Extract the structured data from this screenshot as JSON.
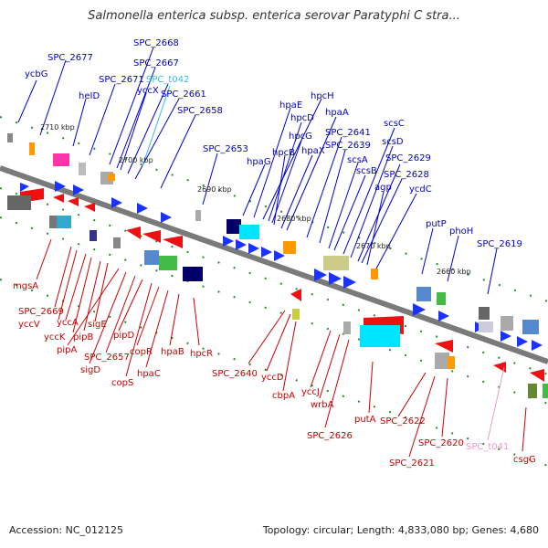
{
  "title": "Salmonella enterica subsp. enterica serovar Paratyphi C stra...",
  "footer": {
    "accession": "Accession: NC_012125",
    "topology": "Topology: circular; Length: 4,833,080 bp; Genes: 4,680"
  },
  "colors": {
    "backbone": "#777777",
    "forward_label": "#0000cc",
    "reverse_label": "#cc0000",
    "trna_forward": "#33bbee",
    "trna_reverse": "#ee99cc",
    "forward_arrow": "#1a33ff",
    "reverse_arrow": "#ee1111"
  },
  "kbp_markers": [
    "2710 kbp",
    "2700 kbp",
    "2690 kbp",
    "2680 kbp",
    "2670 kbp",
    "2660 kbp"
  ],
  "genes_top": [
    "ycbG",
    "SPC_2677",
    "heID",
    "SPC_2671",
    "SPC_2668",
    "SPC_2667",
    "yccX",
    "SPC_t042",
    "SPC_2661",
    "SPC_2658",
    "SPC_2653",
    "hpaG",
    "hpaE",
    "hpcH",
    "hpcD",
    "hpcG",
    "hpcB",
    "hpaX",
    "hpaA",
    "SPC_2641",
    "SPC_2639",
    "scsA",
    "scsB",
    "scsC",
    "scsD",
    "SPC_2629",
    "SPC_2628",
    "agp",
    "ycdC",
    "putP",
    "phoH",
    "SPC_2619"
  ],
  "genes_bottom": [
    "mgsA",
    "SPC_2669",
    "yccV",
    "yccA",
    "yccK",
    "pipB",
    "sigE",
    "pipA",
    "sigD",
    "SPC_2657",
    "pipD",
    "copS",
    "copR",
    "hpaC",
    "hpaB",
    "hpcR",
    "SPC_2640",
    "yccD",
    "cbpA",
    "yccJ",
    "wrbA",
    "SPC_2626",
    "putA",
    "SPC_2622",
    "SPC_2621",
    "SPC_2620",
    "SPC_t041",
    "csgG"
  ]
}
